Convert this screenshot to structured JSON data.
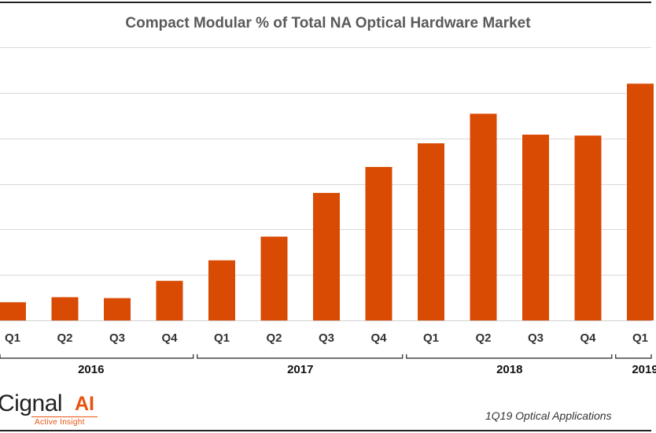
{
  "chart_data": {
    "type": "bar",
    "title": "Compact Modular % of Total NA Optical Hardware Market",
    "categories": [
      "Q1",
      "Q2",
      "Q3",
      "Q4",
      "Q1",
      "Q2",
      "Q3",
      "Q4",
      "Q1",
      "Q2",
      "Q3",
      "Q4",
      "Q1"
    ],
    "groups": [
      {
        "label": "2016",
        "quarters": 4
      },
      {
        "label": "2017",
        "quarters": 4
      },
      {
        "label": "2018",
        "quarters": 4
      },
      {
        "label": "2019",
        "quarters": 1
      }
    ],
    "series": [
      {
        "values": [
          4.0,
          5.1,
          4.9,
          8.7,
          13.2,
          18.4,
          28.0,
          33.7,
          38.9,
          45.4,
          40.8,
          40.6,
          52.0
        ]
      }
    ],
    "ylim": [
      0,
      60
    ],
    "grid": true,
    "bar_color": "#d94a03",
    "gridline_color": "#d9d9d9"
  },
  "logo": {
    "name": "Cignal",
    "suffix": "AI",
    "tagline": "Active Insight"
  },
  "footer": {
    "report": "1Q19 Optical Applications"
  }
}
